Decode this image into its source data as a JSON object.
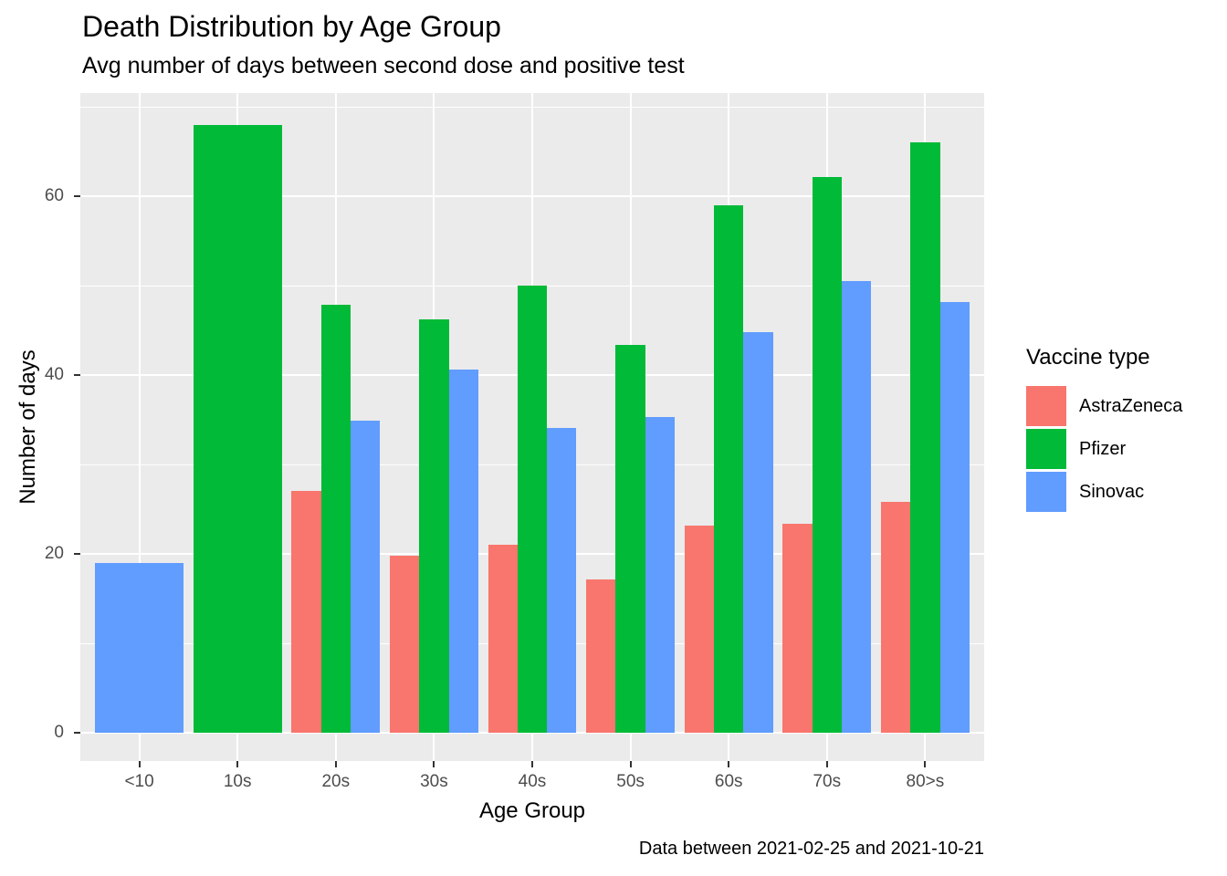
{
  "chart_data": {
    "type": "bar",
    "title": "Death Distribution by Age Group",
    "subtitle": "Avg number of days between second dose and positive test",
    "caption": "Data between 2021-02-25 and 2021-10-21",
    "xlabel": "Age Group",
    "ylabel": "Number of days",
    "legend_title": "Vaccine type",
    "legend_position": "right",
    "grid": true,
    "ylim": [
      0,
      71.4
    ],
    "y_ticks": [
      0,
      20,
      40,
      60
    ],
    "y_minor_ticks": [
      10,
      30,
      50,
      70
    ],
    "categories": [
      "<10",
      "10s",
      "20s",
      "30s",
      "40s",
      "50s",
      "60s",
      "70s",
      "80>s"
    ],
    "series": [
      {
        "name": "AstraZeneca",
        "color": "#F8766D",
        "values": [
          null,
          null,
          27.0,
          19.8,
          21.0,
          17.1,
          23.2,
          23.4,
          25.8
        ]
      },
      {
        "name": "Pfizer",
        "color": "#00BA38",
        "values": [
          null,
          68.0,
          47.9,
          46.2,
          50.0,
          43.4,
          59.0,
          62.1,
          66.0
        ]
      },
      {
        "name": "Sinovac",
        "color": "#619CFF",
        "values": [
          19.0,
          null,
          34.9,
          40.6,
          34.1,
          35.3,
          44.8,
          50.5,
          48.2
        ]
      }
    ],
    "colors": {
      "panel_bg": "#EBEBEB",
      "gridline": "#FFFFFF",
      "tick_label": "#4D4D4D",
      "tick_mark": "#333333",
      "text": "#000000"
    }
  }
}
